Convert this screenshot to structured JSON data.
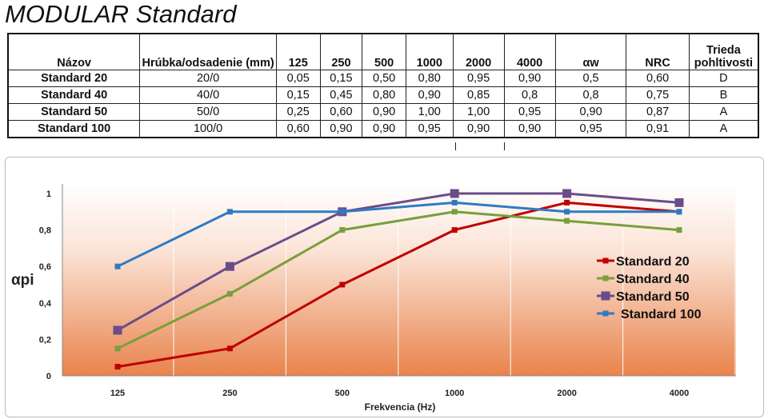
{
  "title": "MODULAR Standard",
  "table": {
    "headers": [
      "Názov",
      "Hrúbka/odsadenie (mm)",
      "125",
      "250",
      "500",
      "1000",
      "2000",
      "4000",
      "αw",
      "NRC",
      "Trieda pohltivosti"
    ],
    "rows": [
      [
        "Standard 20",
        "20/0",
        "0,05",
        "0,15",
        "0,50",
        "0,80",
        "0,95",
        "0,90",
        "0,5",
        "0,60",
        "D"
      ],
      [
        "Standard 40",
        "40/0",
        "0,15",
        "0,45",
        "0,80",
        "0,90",
        "0,85",
        "0,8",
        "0,8",
        "0,75",
        "B"
      ],
      [
        "Standard 50",
        "50/0",
        "0,25",
        "0,60",
        "0,90",
        "1,00",
        "1,00",
        "0,95",
        "0,90",
        "0,87",
        "A"
      ],
      [
        "Standard 100",
        "100/0",
        "0,60",
        "0,90",
        "0,90",
        "0,95",
        "0,90",
        "0,90",
        "0,95",
        "0,91",
        "A"
      ]
    ]
  },
  "chart_data": {
    "type": "line",
    "categories": [
      "125",
      "250",
      "500",
      "1000",
      "2000",
      "4000"
    ],
    "xlabel": "Frekvencia (Hz)",
    "ylabel": "αpi",
    "ylim": [
      0,
      1
    ],
    "yticks": [
      "0",
      "0,2",
      "0,4",
      "0,6",
      "0,8",
      "1"
    ],
    "legend": "right",
    "series": [
      {
        "name": "Standard 20",
        "color": "#c00000",
        "values": [
          0.05,
          0.15,
          0.5,
          0.8,
          0.95,
          0.9
        ]
      },
      {
        "name": "Standard 40",
        "color": "#77a03a",
        "values": [
          0.15,
          0.45,
          0.8,
          0.9,
          0.85,
          0.8
        ]
      },
      {
        "name": "Standard 50",
        "color": "#6b4c8a",
        "values": [
          0.25,
          0.6,
          0.9,
          1.0,
          1.0,
          0.95
        ]
      },
      {
        "name": "Standard 100",
        "color": "#2e7bc4",
        "values": [
          0.6,
          0.9,
          0.9,
          0.95,
          0.9,
          0.9
        ]
      }
    ]
  }
}
